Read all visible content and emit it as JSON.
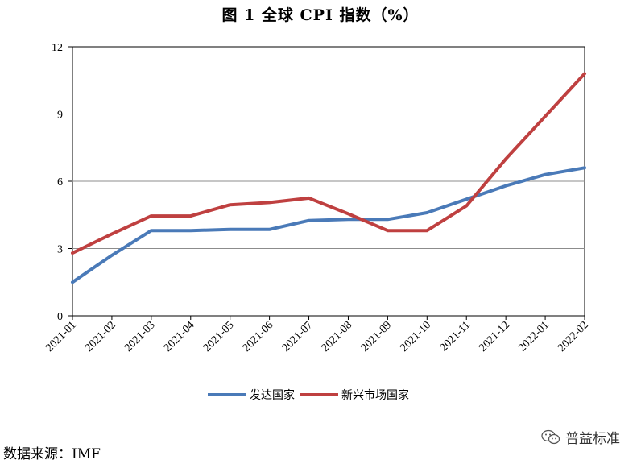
{
  "chart_data": {
    "type": "line",
    "title": "图 1  全球 CPI 指数（%）",
    "xlabel": "",
    "ylabel": "",
    "ylim": [
      0,
      12
    ],
    "yticks": [
      0,
      3,
      6,
      9,
      12
    ],
    "grid": "horizontal",
    "legend_position": "bottom",
    "categories": [
      "2021-01",
      "2021-02",
      "2021-03",
      "2021-04",
      "2021-05",
      "2021-06",
      "2021-07",
      "2021-08",
      "2021-09",
      "2021-10",
      "2021-11",
      "2021-12",
      "2022-01",
      "2022-02"
    ],
    "series": [
      {
        "name": "发达国家",
        "color": "#4a7ab8",
        "values": [
          1.5,
          2.7,
          3.8,
          3.8,
          3.85,
          3.85,
          4.25,
          4.3,
          4.3,
          4.6,
          5.2,
          5.8,
          6.3,
          6.6
        ]
      },
      {
        "name": "新兴市场国家",
        "color": "#bf4040",
        "values": [
          2.8,
          3.65,
          4.45,
          4.45,
          4.95,
          5.05,
          5.25,
          4.55,
          3.8,
          3.8,
          4.9,
          7.0,
          8.9,
          10.8
        ]
      }
    ]
  },
  "source_note": "数据来源：IMF",
  "watermark": "普益标准"
}
